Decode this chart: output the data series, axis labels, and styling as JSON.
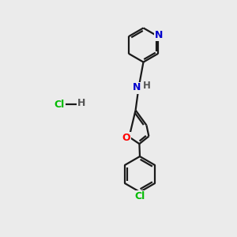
{
  "bg_color": "#ebebeb",
  "bond_color": "#1a1a1a",
  "N_color": "#0000cc",
  "O_color": "#ff0000",
  "Cl_color": "#00bb00",
  "H_color": "#555555",
  "line_width": 1.6,
  "figsize": [
    3.0,
    3.0
  ],
  "dpi": 100,
  "xlim": [
    0,
    10
  ],
  "ylim": [
    0,
    10
  ]
}
